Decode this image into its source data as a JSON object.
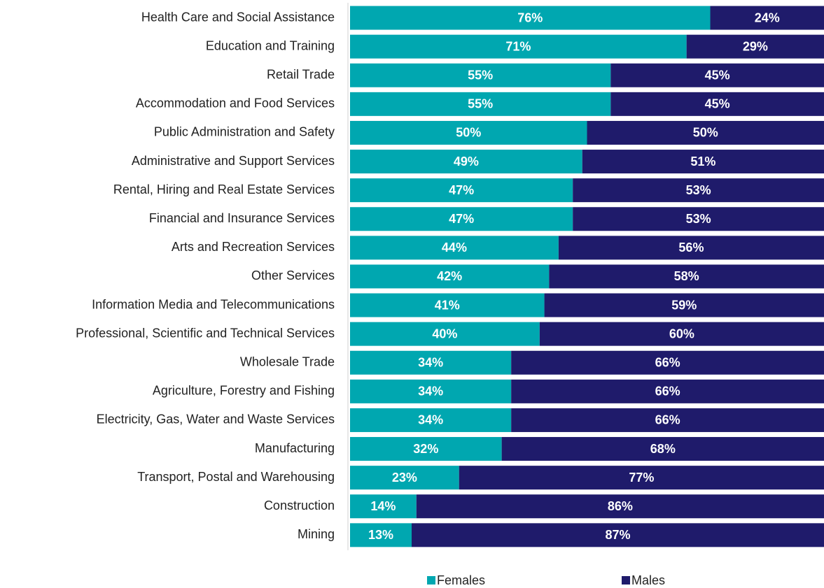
{
  "chart_data": {
    "type": "stacked-barh",
    "categories": [
      "Health Care and Social Assistance",
      "Education and Training",
      "Retail Trade",
      "Accommodation and Food Services",
      "Public Administration and Safety",
      "Administrative and Support Services",
      "Rental, Hiring and Real Estate Services",
      "Financial and Insurance Services",
      "Arts and Recreation Services",
      "Other Services",
      "Information Media and Telecommunications",
      "Professional, Scientific and Technical Services",
      "Wholesale Trade",
      "Agriculture, Forestry and Fishing",
      "Electricity, Gas, Water and Waste Services",
      "Manufacturing",
      "Transport, Postal and Warehousing",
      "Construction",
      "Mining"
    ],
    "series": [
      {
        "name": "Females",
        "color": "#00a7b0",
        "values": [
          76,
          71,
          55,
          55,
          50,
          49,
          47,
          47,
          44,
          42,
          41,
          40,
          34,
          34,
          34,
          32,
          23,
          14,
          13
        ],
        "value_labels": [
          "76%",
          "71%",
          "55%",
          "55%",
          "50%",
          "49%",
          "47%",
          "47%",
          "44%",
          "42%",
          "41%",
          "40%",
          "34%",
          "34%",
          "34%",
          "32%",
          "23%",
          "14%",
          "13%"
        ]
      },
      {
        "name": "Males",
        "color": "#1f1b6b",
        "values": [
          24,
          29,
          45,
          45,
          50,
          51,
          53,
          53,
          56,
          58,
          59,
          60,
          66,
          66,
          66,
          68,
          77,
          86,
          87
        ],
        "value_labels": [
          "24%",
          "29%",
          "45%",
          "45%",
          "50%",
          "51%",
          "53%",
          "53%",
          "56%",
          "58%",
          "59%",
          "60%",
          "66%",
          "66%",
          "66%",
          "68%",
          "77%",
          "86%",
          "87%"
        ]
      }
    ],
    "xlim": [
      0,
      100
    ],
    "legend": "bottom"
  }
}
